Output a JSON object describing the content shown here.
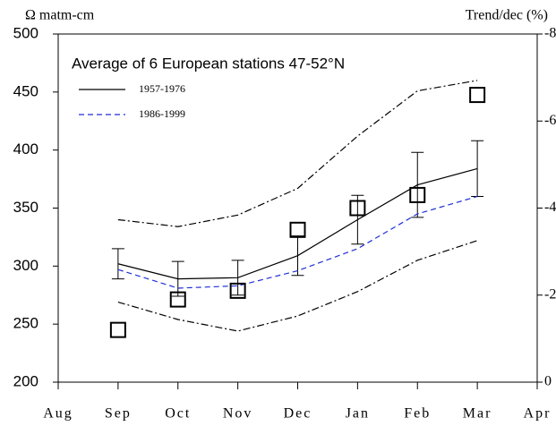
{
  "chart_data": {
    "type": "line",
    "title": "Average of 6 European stations 47-52°N",
    "y_label": "Ω matm-cm",
    "y2_label": "Trend/dec (%)",
    "categories": [
      "Aug",
      "Sep",
      "Oct",
      "Nov",
      "Dec",
      "Jan",
      "Feb",
      "Mar",
      "Apr"
    ],
    "ylim": [
      200,
      500
    ],
    "yticks": [
      200,
      250,
      300,
      350,
      400,
      450,
      500
    ],
    "y2lim": [
      0,
      -8
    ],
    "y2ticks": [
      0,
      -2,
      -4,
      -6,
      -8
    ],
    "grid": false,
    "legend": "upper-left",
    "series": [
      {
        "name": "1957-1976",
        "color": "#000000",
        "style": "solid",
        "values": [
          null,
          302,
          289,
          290,
          309,
          340,
          370,
          384,
          null
        ],
        "errors": [
          null,
          13,
          15,
          15,
          17,
          21,
          28,
          24,
          null
        ]
      },
      {
        "name": "1986-1999",
        "color": "#1f2fd8",
        "style": "dashed",
        "values": [
          null,
          297,
          281,
          283,
          296,
          315,
          345,
          360,
          null
        ]
      },
      {
        "color": "#000000",
        "style": "dashdot",
        "values": [
          null,
          340,
          334,
          344,
          367,
          412,
          451,
          460,
          null
        ]
      },
      {
        "color": "#000000",
        "style": "dashdot",
        "values": [
          null,
          269,
          254,
          244,
          257,
          278,
          305,
          322,
          null
        ]
      },
      {
        "color": "#000000",
        "style": "square",
        "axis": "y2",
        "values": [
          null,
          -1.2,
          -1.9,
          -2.1,
          -3.5,
          -4.0,
          -4.3,
          -6.6,
          null
        ]
      }
    ]
  }
}
